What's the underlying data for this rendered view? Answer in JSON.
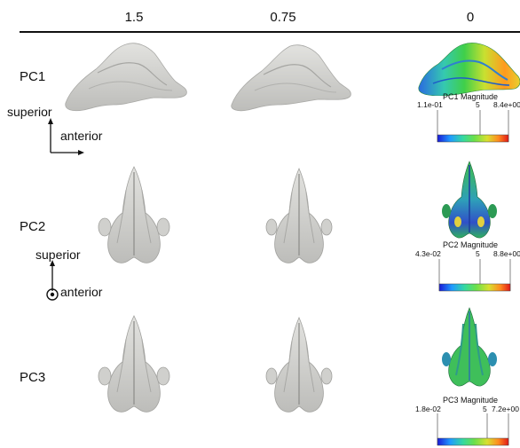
{
  "columns": [
    "1.5",
    "0.75",
    "0"
  ],
  "rows": [
    {
      "label": "PC1",
      "view": "lateral",
      "colorbar": {
        "title": "PC1 Magnitude",
        "min": "1.1e-01",
        "mid": "5",
        "max": "8.4e+00"
      }
    },
    {
      "label": "PC2",
      "view": "frontal",
      "colorbar": {
        "title": "PC2 Magnitude",
        "min": "4.3e-02",
        "mid": "5",
        "max": "8.8e+00"
      }
    },
    {
      "label": "PC3",
      "view": "frontal",
      "colorbar": {
        "title": "PC3 Magnitude",
        "min": "1.8e-02",
        "mid": "5",
        "max": "7.2e+00"
      }
    }
  ],
  "axes": {
    "lateral": {
      "up": "superior",
      "right": "anterior"
    },
    "frontal": {
      "up": "superior",
      "out": "anterior"
    }
  },
  "colors": {
    "mesh_gray": "#d6d6d3",
    "colormap": [
      "#1a1ad6",
      "#1f9bff",
      "#35d9a0",
      "#6be04a",
      "#d8e030",
      "#ff8a1e",
      "#e01818"
    ]
  }
}
